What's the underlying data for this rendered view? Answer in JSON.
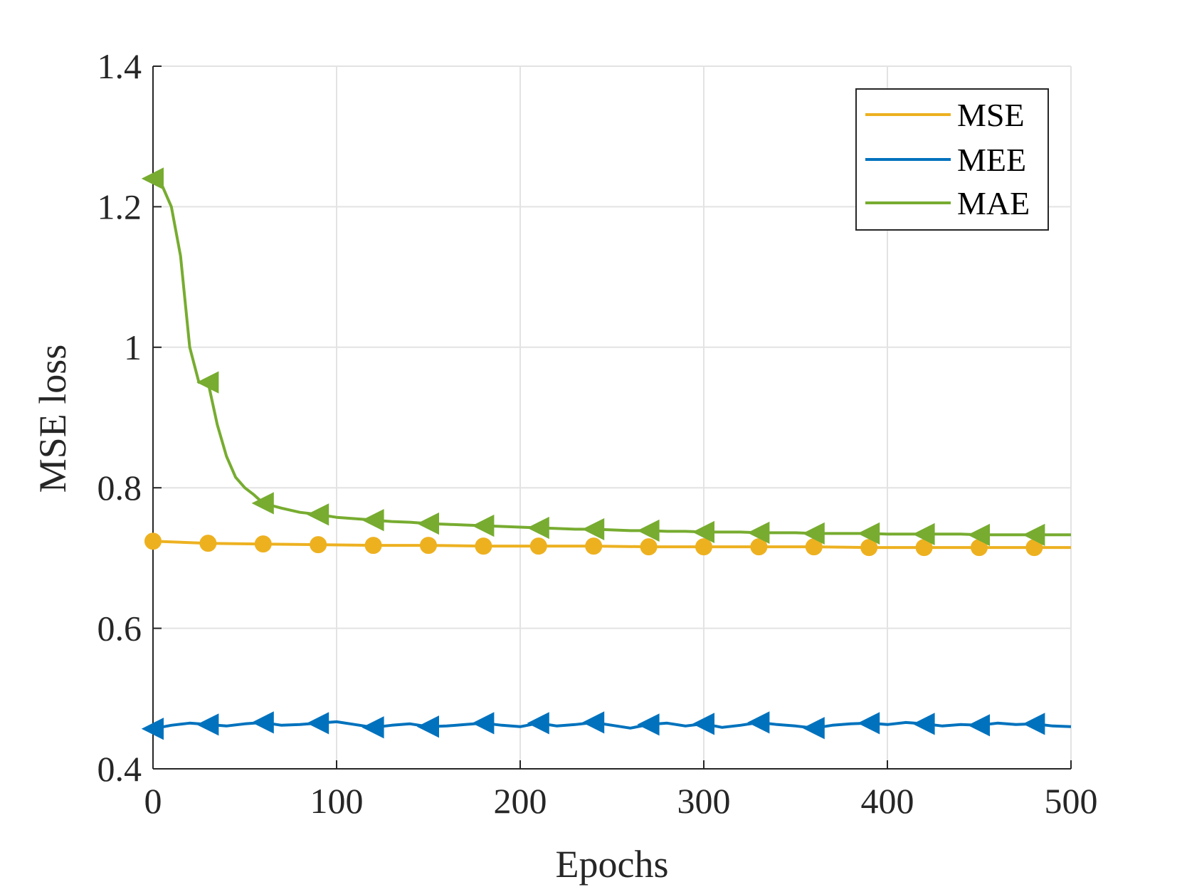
{
  "chart_data": {
    "type": "line",
    "title": "",
    "xlabel": "Epochs",
    "ylabel": "MSE loss",
    "xlim": [
      0,
      500
    ],
    "ylim": [
      0.4,
      1.4
    ],
    "xticks": [
      0,
      100,
      200,
      300,
      400,
      500
    ],
    "xtick_labels": [
      "0",
      "100",
      "200",
      "300",
      "400",
      "500"
    ],
    "yticks": [
      0.4,
      0.6,
      0.8,
      1.0,
      1.2,
      1.4
    ],
    "ytick_labels": [
      "0.4",
      "0.6",
      "0.8",
      "1",
      "1.2",
      "1.4"
    ],
    "grid": true,
    "legend_position": "top-right",
    "series": [
      {
        "name": "MSE",
        "color": "#EDB120",
        "marker": "circle",
        "marker_x": [
          0,
          30,
          60,
          90,
          120,
          150,
          180,
          210,
          240,
          270,
          300,
          330,
          360,
          390,
          420,
          450,
          480
        ],
        "x": [
          0,
          30,
          60,
          90,
          120,
          150,
          180,
          210,
          240,
          270,
          300,
          330,
          360,
          390,
          420,
          450,
          480,
          500
        ],
        "values": [
          0.724,
          0.721,
          0.72,
          0.719,
          0.718,
          0.718,
          0.717,
          0.717,
          0.717,
          0.716,
          0.716,
          0.716,
          0.716,
          0.715,
          0.715,
          0.715,
          0.715,
          0.715
        ]
      },
      {
        "name": "MEE",
        "color": "#0072BD",
        "marker": "triangle-left",
        "marker_x": [
          0,
          30,
          60,
          90,
          120,
          150,
          180,
          210,
          240,
          270,
          300,
          330,
          360,
          390,
          420,
          450,
          480
        ],
        "x": [
          0,
          10,
          20,
          30,
          40,
          50,
          60,
          70,
          80,
          90,
          100,
          110,
          120,
          130,
          140,
          150,
          160,
          170,
          180,
          190,
          200,
          210,
          220,
          230,
          240,
          250,
          260,
          270,
          280,
          290,
          300,
          310,
          320,
          330,
          340,
          350,
          360,
          370,
          380,
          390,
          400,
          410,
          420,
          430,
          440,
          450,
          460,
          470,
          480,
          490,
          500
        ],
        "values": [
          0.457,
          0.462,
          0.465,
          0.463,
          0.461,
          0.464,
          0.466,
          0.462,
          0.463,
          0.465,
          0.467,
          0.463,
          0.459,
          0.462,
          0.464,
          0.46,
          0.461,
          0.463,
          0.465,
          0.462,
          0.46,
          0.465,
          0.461,
          0.463,
          0.466,
          0.462,
          0.458,
          0.463,
          0.465,
          0.461,
          0.464,
          0.459,
          0.462,
          0.466,
          0.463,
          0.461,
          0.458,
          0.462,
          0.464,
          0.465,
          0.463,
          0.466,
          0.464,
          0.461,
          0.463,
          0.462,
          0.465,
          0.463,
          0.464,
          0.461,
          0.46
        ]
      },
      {
        "name": "MAE",
        "color": "#77AC30",
        "marker": "triangle-left",
        "marker_x": [
          0,
          30,
          60,
          90,
          120,
          150,
          180,
          210,
          240,
          270,
          300,
          330,
          360,
          390,
          420,
          450,
          480
        ],
        "x": [
          0,
          5,
          10,
          15,
          20,
          25,
          30,
          35,
          40,
          45,
          50,
          55,
          60,
          70,
          80,
          90,
          100,
          110,
          120,
          130,
          140,
          150,
          160,
          170,
          180,
          190,
          200,
          210,
          220,
          230,
          240,
          250,
          260,
          270,
          280,
          290,
          300,
          310,
          320,
          330,
          340,
          350,
          360,
          370,
          380,
          390,
          400,
          410,
          420,
          430,
          440,
          450,
          460,
          470,
          480,
          490,
          500
        ],
        "values": [
          1.24,
          1.23,
          1.2,
          1.13,
          1.0,
          0.95,
          0.95,
          0.89,
          0.845,
          0.815,
          0.8,
          0.79,
          0.778,
          0.771,
          0.765,
          0.762,
          0.758,
          0.756,
          0.754,
          0.752,
          0.751,
          0.749,
          0.748,
          0.747,
          0.746,
          0.745,
          0.744,
          0.743,
          0.742,
          0.741,
          0.741,
          0.74,
          0.739,
          0.739,
          0.738,
          0.738,
          0.737,
          0.737,
          0.737,
          0.736,
          0.736,
          0.736,
          0.735,
          0.735,
          0.735,
          0.735,
          0.734,
          0.734,
          0.734,
          0.734,
          0.734,
          0.733,
          0.733,
          0.733,
          0.733,
          0.733,
          0.733
        ]
      }
    ]
  }
}
